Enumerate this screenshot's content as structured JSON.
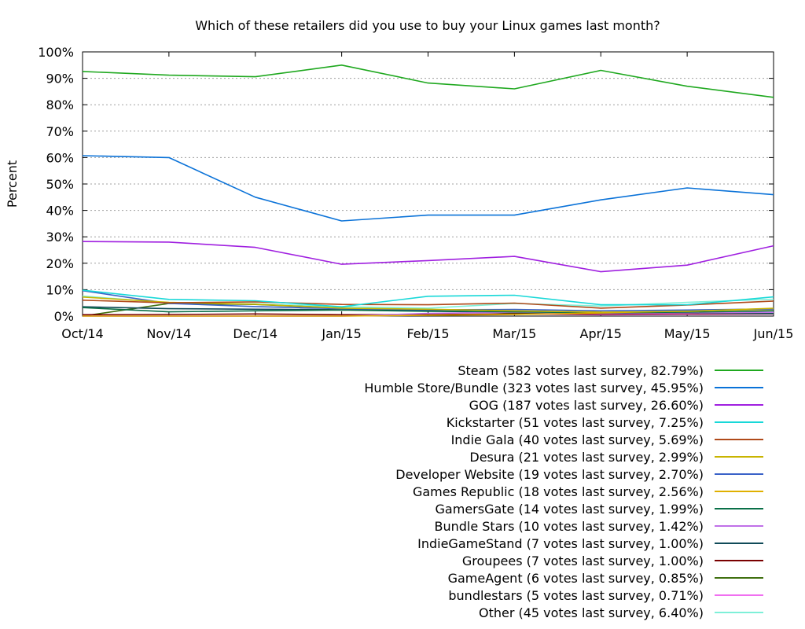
{
  "chart_data": {
    "type": "line",
    "title": "Which of these retailers did you use to buy your Linux games last month?",
    "xlabel": "",
    "ylabel": "Percent",
    "categories": [
      "Oct/14",
      "Nov/14",
      "Dec/14",
      "Jan/15",
      "Feb/15",
      "Mar/15",
      "Apr/15",
      "May/15",
      "Jun/15"
    ],
    "ylim": [
      0,
      100
    ],
    "y_ticks": [
      "0%",
      "10%",
      "20%",
      "30%",
      "40%",
      "50%",
      "60%",
      "70%",
      "80%",
      "90%",
      "100%"
    ],
    "grid": true,
    "legend_position": "below",
    "series": [
      {
        "name": "Steam (582 votes last survey, 82.79%)",
        "color": "#1fa81f",
        "values": [
          92.6,
          91.2,
          90.6,
          95.0,
          88.2,
          86.0,
          93.0,
          87.0,
          82.79
        ]
      },
      {
        "name": "Humble Store/Bundle (323 votes last survey, 45.95%)",
        "color": "#0a72d8",
        "values": [
          60.7,
          60.0,
          45.0,
          36.0,
          38.2,
          38.2,
          44.0,
          48.5,
          45.95
        ]
      },
      {
        "name": "GOG (187 votes last survey, 26.60%)",
        "color": "#a020e0",
        "values": [
          28.2,
          28.0,
          26.0,
          19.6,
          21.0,
          22.6,
          16.8,
          19.3,
          26.6
        ]
      },
      {
        "name": "Kickstarter (51 votes last survey, 7.25%)",
        "color": "#18d8d8",
        "values": [
          9.8,
          6.3,
          5.8,
          3.5,
          7.5,
          7.9,
          4.3,
          4.3,
          7.25
        ]
      },
      {
        "name": "Indie Gala (40 votes last survey, 5.69%)",
        "color": "#b04a1a",
        "values": [
          6.0,
          5.0,
          5.4,
          4.4,
          4.3,
          4.9,
          3.0,
          4.2,
          5.69
        ]
      },
      {
        "name": "Desura (21 votes last survey, 2.99%)",
        "color": "#c8b400",
        "values": [
          7.2,
          5.2,
          4.5,
          3.0,
          2.6,
          2.0,
          1.5,
          1.8,
          2.99
        ]
      },
      {
        "name": "Developer Website (19 votes last survey, 2.70%)",
        "color": "#3a62c8",
        "values": [
          9.6,
          4.8,
          3.6,
          2.8,
          2.4,
          2.5,
          2.0,
          2.3,
          2.7
        ]
      },
      {
        "name": "Games Republic (18 votes last survey, 2.56%)",
        "color": "#e0b000",
        "values": [
          0,
          0,
          0,
          0,
          0.3,
          0.6,
          1.2,
          2.0,
          2.56
        ]
      },
      {
        "name": "GamersGate (14 votes last survey, 1.99%)",
        "color": "#0a7048",
        "values": [
          3.2,
          1.6,
          2.0,
          2.3,
          1.8,
          1.6,
          1.2,
          1.5,
          1.99
        ]
      },
      {
        "name": "Bundle Stars (10 votes last survey, 1.42%)",
        "color": "#c070e8",
        "values": [
          0,
          0,
          0,
          0,
          1.0,
          1.5,
          1.0,
          1.2,
          1.42
        ]
      },
      {
        "name": "IndieGameStand (7 votes last survey, 1.00%)",
        "color": "#104a58",
        "values": [
          3.5,
          2.8,
          2.6,
          2.4,
          2.0,
          1.6,
          1.4,
          1.2,
          1.0
        ]
      },
      {
        "name": "Groupees (7 votes last survey, 1.00%)",
        "color": "#7a0000",
        "values": [
          0.5,
          0.6,
          0.8,
          0.5,
          0.6,
          0.8,
          0.7,
          0.9,
          1.0
        ]
      },
      {
        "name": "GameAgent (6 votes last survey, 0.85%)",
        "color": "#407010",
        "values": [
          0,
          4.8,
          4.4,
          3.0,
          2.0,
          1.2,
          1.0,
          0.9,
          0.85
        ]
      },
      {
        "name": "bundlestars (5 votes last survey, 0.71%)",
        "color": "#f070f0",
        "values": [
          0,
          0,
          0,
          0,
          0.4,
          0.8,
          0.5,
          0.6,
          0.71
        ]
      },
      {
        "name": "Other (45 votes last survey, 6.40%)",
        "color": "#7ef0d8",
        "values": [
          7.6,
          5.0,
          4.6,
          3.5,
          3.0,
          4.8,
          3.8,
          5.2,
          6.4
        ]
      }
    ]
  }
}
